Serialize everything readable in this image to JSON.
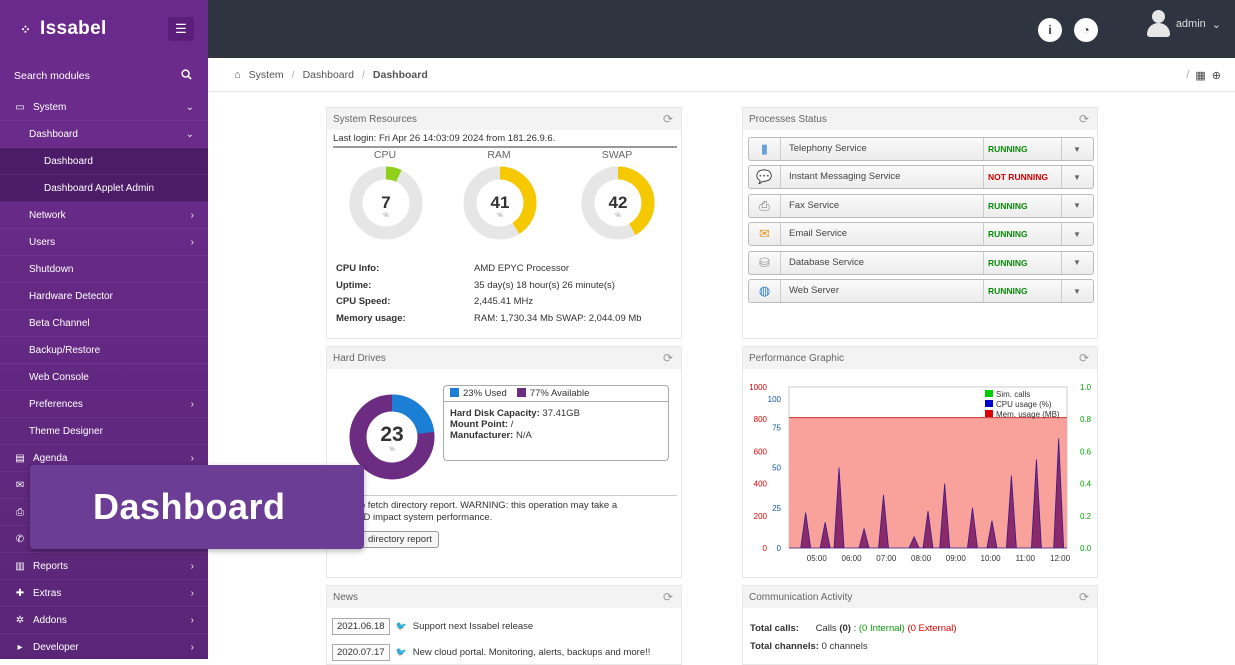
{
  "brand": {
    "name": "Issabel"
  },
  "search": {
    "label": "Search modules"
  },
  "sidebar": {
    "items": [
      {
        "label": "System",
        "level": 0,
        "chev": "⌄",
        "icon": "laptop-icon"
      },
      {
        "label": "Dashboard",
        "level": 1,
        "chev": "⌄"
      },
      {
        "label": "Dashboard",
        "level": 2,
        "chev": ""
      },
      {
        "label": "Dashboard Applet Admin",
        "level": 2,
        "chev": ""
      },
      {
        "label": "Network",
        "level": 1,
        "chev": "›"
      },
      {
        "label": "Users",
        "level": 1,
        "chev": "›"
      },
      {
        "label": "Shutdown",
        "level": 1,
        "chev": ""
      },
      {
        "label": "Hardware Detector",
        "level": 1,
        "chev": ""
      },
      {
        "label": "Beta Channel",
        "level": 1,
        "chev": ""
      },
      {
        "label": "Backup/Restore",
        "level": 1,
        "chev": ""
      },
      {
        "label": "Web Console",
        "level": 1,
        "chev": ""
      },
      {
        "label": "Preferences",
        "level": 1,
        "chev": "›"
      },
      {
        "label": "Theme Designer",
        "level": 1,
        "chev": ""
      },
      {
        "label": "Agenda",
        "level": 0,
        "chev": "›",
        "icon": "book-icon"
      },
      {
        "label": "",
        "level": 0,
        "chev": "›",
        "icon": "email-icon"
      },
      {
        "label": "",
        "level": 0,
        "chev": "›",
        "icon": "printer-icon"
      },
      {
        "label": "",
        "level": 0,
        "chev": "›",
        "icon": "phone-icon"
      },
      {
        "label": "Reports",
        "level": 0,
        "chev": "›",
        "icon": "bar-chart-icon"
      },
      {
        "label": "Extras",
        "level": 0,
        "chev": "›",
        "icon": "plus-icon"
      },
      {
        "label": "Addons",
        "level": 0,
        "chev": "›",
        "icon": "gears-icon"
      },
      {
        "label": "Developer",
        "level": 0,
        "chev": "›",
        "icon": "caret-right-icon"
      }
    ]
  },
  "topbar": {
    "user": "admin"
  },
  "breadcrumb": {
    "items": [
      "System",
      "Dashboard",
      "Dashboard"
    ]
  },
  "system_resources": {
    "title": "System Resources",
    "last_login": "Last login: Fri Apr 26 14:03:09 2024 from 181.26.9.6.",
    "gauges": [
      {
        "label": "CPU",
        "value": 7,
        "unit": "%",
        "color": "#8fd11a"
      },
      {
        "label": "RAM",
        "value": 41,
        "unit": "%",
        "color": "#f5c800"
      },
      {
        "label": "SWAP",
        "value": 42,
        "unit": "%",
        "color": "#f5c800"
      }
    ],
    "info": [
      {
        "k": "CPU Info:",
        "v": "AMD EPYC Processor"
      },
      {
        "k": "Uptime:",
        "v": "35 day(s) 18 hour(s) 26 minute(s)"
      },
      {
        "k": "CPU Speed:",
        "v": "2,445.41 MHz"
      },
      {
        "k": "Memory usage:",
        "v": "RAM: 1,730.34 Mb SWAP: 2,044.09 Mb"
      }
    ]
  },
  "processes": {
    "title": "Processes Status",
    "items": [
      {
        "name": "Telephony Service",
        "status": "RUNNING",
        "ok": true,
        "icon": "telephony-icon"
      },
      {
        "name": "Instant Messaging Service",
        "status": "NOT RUNNING",
        "ok": false,
        "icon": "chat-icon"
      },
      {
        "name": "Fax Service",
        "status": "RUNNING",
        "ok": true,
        "icon": "fax-icon"
      },
      {
        "name": "Email Service",
        "status": "RUNNING",
        "ok": true,
        "icon": "envelope-icon"
      },
      {
        "name": "Database Service",
        "status": "RUNNING",
        "ok": true,
        "icon": "database-icon"
      },
      {
        "name": "Web Server",
        "status": "RUNNING",
        "ok": true,
        "icon": "globe-icon"
      }
    ]
  },
  "hard_drives": {
    "title": "Hard Drives",
    "used_pct": 23,
    "unit": "%",
    "used_label": "23% Used",
    "avail_label": "77% Available",
    "capacity_k": "Hard Disk Capacity:",
    "capacity_v": "37.41GB",
    "mount_k": "Mount Point:",
    "mount_v": "/",
    "manufacturer_k": "Manufacturer:",
    "manufacturer_v": "N/A",
    "fetch_line1": "elow to fetch directory report. WARNING: this operation may take a",
    "fetch_line2": "me AND impact system performance.",
    "fetch_button": "directory report",
    "colors": {
      "used": "#1c7fd6",
      "avail": "#6b2c82"
    }
  },
  "performance": {
    "title": "Performance Graphic"
  },
  "chart_data": {
    "type": "area",
    "x": [
      "05:00",
      "06:00",
      "07:00",
      "08:00",
      "09:00",
      "10:00",
      "11:00",
      "12:00"
    ],
    "y_left_ticks": [
      0,
      200,
      400,
      600,
      800,
      1000
    ],
    "y_left2_ticks": [
      0,
      25,
      50,
      75,
      100
    ],
    "y_right_ticks": [
      "0.0",
      "0.2",
      "0.4",
      "0.6",
      "0.8",
      "1.0"
    ],
    "legend": [
      "Sim. calls",
      "CPU usage (%)",
      "Mem. usage (MB)"
    ],
    "legend_colors": [
      "#00cc00",
      "#0000cc",
      "#dd0000"
    ],
    "series": [
      {
        "name": "Mem. usage (MB)",
        "level": 810
      },
      {
        "name": "CPU usage (%)",
        "spikes": [
          [
            0.06,
            0.22
          ],
          [
            0.13,
            0.16
          ],
          [
            0.18,
            0.5
          ],
          [
            0.27,
            0.12
          ],
          [
            0.34,
            0.33
          ],
          [
            0.45,
            0.07
          ],
          [
            0.5,
            0.23
          ],
          [
            0.56,
            0.4
          ],
          [
            0.66,
            0.25
          ],
          [
            0.73,
            0.17
          ],
          [
            0.8,
            0.45
          ],
          [
            0.89,
            0.55
          ],
          [
            0.97,
            0.68
          ]
        ]
      }
    ]
  },
  "news": {
    "title": "News",
    "items": [
      {
        "date": "2021.06.18",
        "text": "Support next Issabel release"
      },
      {
        "date": "2020.07.17",
        "text": "New cloud portal. Monitoring, alerts, backups and more!!"
      }
    ]
  },
  "comm": {
    "title": "Communication Activity",
    "calls_k": "Total calls:",
    "calls_pre": "Calls",
    "calls_n": "(0)",
    "calls_colon": ":",
    "calls_int": "(0 Internal)",
    "calls_ext": "(0 External)",
    "channels_k": "Total channels:",
    "channels_v": "0 channels"
  },
  "overlay": {
    "text": "Dashboard"
  }
}
